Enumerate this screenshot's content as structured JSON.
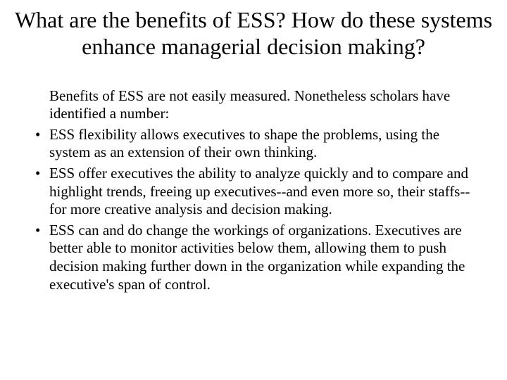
{
  "title": "What are the benefits of ESS? How do these systems enhance managerial decision making?",
  "intro": "Benefits of ESS are not easily measured. Nonetheless scholars have identified a number:",
  "bullets": [
    "ESS flexibility allows executives to shape the problems, using the system as an extension of their own thinking.",
    "ESS offer executives the ability to analyze quickly and to compare and highlight trends, freeing up executives--and even more so, their staffs--for more creative analysis and decision making.",
    "ESS can and do change the workings of organizations. Executives are better able to monitor activities below them, allowing them to push decision making further down in the organization while expanding the executive's span of control."
  ],
  "colors": {
    "background": "#ffffff",
    "text": "#000000"
  },
  "typography": {
    "title_fontsize": 32,
    "body_fontsize": 21,
    "font_family": "Times New Roman"
  },
  "bullet_char": "•"
}
